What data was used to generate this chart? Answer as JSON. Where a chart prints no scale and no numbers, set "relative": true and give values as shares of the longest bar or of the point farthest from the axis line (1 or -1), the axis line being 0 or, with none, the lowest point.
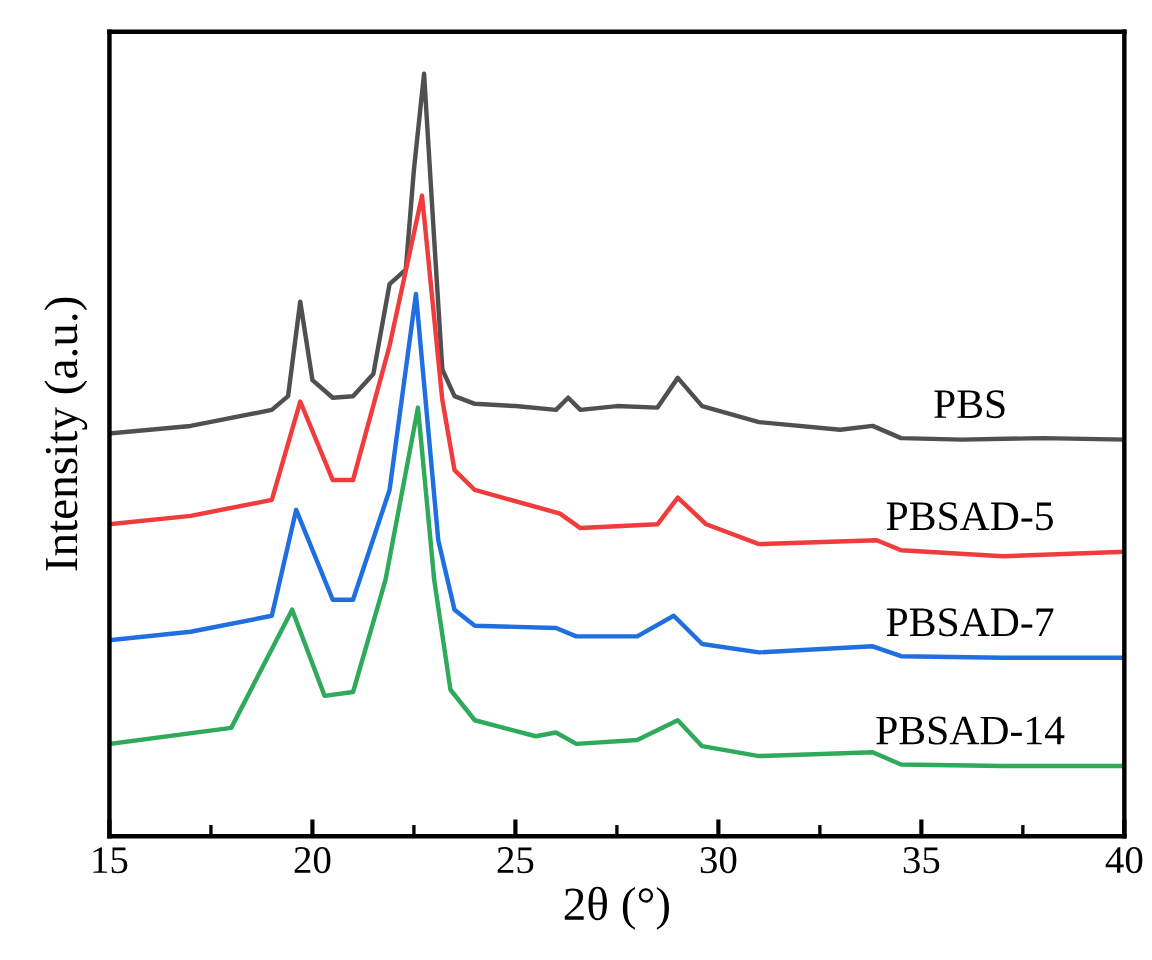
{
  "chart_data": {
    "type": "line",
    "relative": true,
    "xlabel": "2θ (°)",
    "ylabel": "Intensity (a.u.)",
    "xlim": [
      15,
      40
    ],
    "xticks": [
      15,
      20,
      25,
      30,
      35,
      40
    ],
    "grid": false,
    "legend": false,
    "marker": "none",
    "line_style": "solid",
    "tick_labels": "x",
    "series": [
      {
        "name": "PBS",
        "color": "#505050",
        "x": [
          15,
          17,
          19,
          19.4,
          19.7,
          20.0,
          20.5,
          21,
          21.5,
          21.9,
          22.3,
          22.5,
          22.75,
          23.0,
          23.2,
          23.5,
          24,
          25,
          26,
          26.3,
          26.6,
          27.5,
          28.5,
          29.0,
          29.6,
          31,
          33,
          33.8,
          34.5,
          36,
          38,
          40
        ],
        "values": [
          0.528,
          0.538,
          0.559,
          0.577,
          0.701,
          0.598,
          0.575,
          0.577,
          0.606,
          0.724,
          0.743,
          0.874,
          1.0,
          0.782,
          0.612,
          0.577,
          0.567,
          0.564,
          0.559,
          0.575,
          0.559,
          0.564,
          0.562,
          0.601,
          0.564,
          0.543,
          0.533,
          0.538,
          0.522,
          0.52,
          0.522,
          0.52
        ]
      },
      {
        "name": "PBSAD-5",
        "color": "#f03c3c",
        "x": [
          15,
          17,
          19,
          19.7,
          20.5,
          21,
          21.9,
          22.7,
          23.2,
          23.5,
          24,
          26.1,
          26.6,
          28.5,
          29.0,
          29.7,
          31,
          33.9,
          34.5,
          37,
          40
        ],
        "values": [
          0.409,
          0.42,
          0.441,
          0.57,
          0.467,
          0.467,
          0.643,
          0.84,
          0.572,
          0.48,
          0.454,
          0.423,
          0.404,
          0.409,
          0.444,
          0.409,
          0.383,
          0.388,
          0.375,
          0.367,
          0.373
        ]
      },
      {
        "name": "PBSAD-7",
        "color": "#1f6fe0",
        "x": [
          15,
          17,
          19,
          19.6,
          20.5,
          21,
          21.9,
          22.55,
          23.1,
          23.5,
          24,
          26.0,
          26.5,
          28,
          28.9,
          29.6,
          31,
          33.8,
          34.5,
          37,
          40
        ],
        "values": [
          0.257,
          0.268,
          0.289,
          0.428,
          0.31,
          0.31,
          0.454,
          0.711,
          0.388,
          0.297,
          0.276,
          0.273,
          0.262,
          0.262,
          0.289,
          0.252,
          0.241,
          0.249,
          0.236,
          0.234,
          0.234
        ]
      },
      {
        "name": "PBSAD-14",
        "color": "#2eaa5a",
        "x": [
          15,
          18,
          19.5,
          20.3,
          21,
          21.8,
          22.6,
          23.0,
          23.4,
          24,
          25.5,
          26.0,
          26.5,
          28,
          29.0,
          29.6,
          31,
          33.8,
          34.5,
          37,
          40
        ],
        "values": [
          0.121,
          0.142,
          0.297,
          0.184,
          0.189,
          0.336,
          0.562,
          0.336,
          0.192,
          0.152,
          0.131,
          0.136,
          0.121,
          0.126,
          0.152,
          0.118,
          0.105,
          0.11,
          0.094,
          0.092,
          0.092
        ]
      }
    ]
  }
}
